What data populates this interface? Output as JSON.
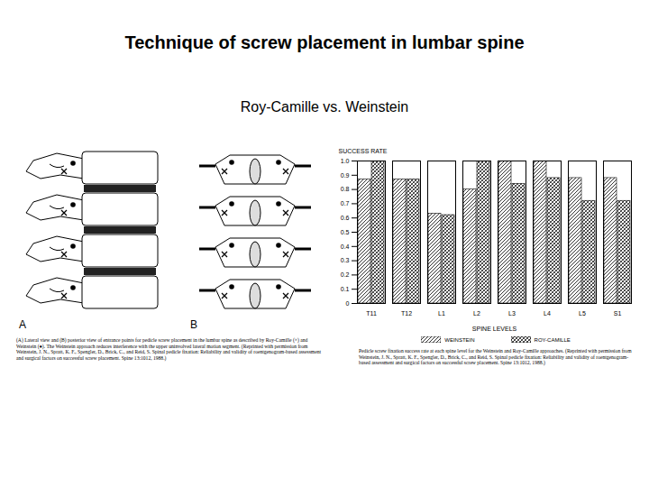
{
  "slide": {
    "title": "Technique of screw placement in lumbar spine",
    "subtitle": "Roy-Camille vs. Weinstein"
  },
  "figure": {
    "panel_labels": [
      "A",
      "B"
    ],
    "caption": "(A) Lateral view and (B) posterior view of entrance points for pedicle screw placement in the lumbar spine as described by Roy-Camille (×) and Weinstein (●). The Weinstein approach reduces interference with the upper uninvolved lateral motion segment. (Reprinted with permission from Weinstein, J. N., Spratt, K. F., Spengler, D., Brick, C., and Reid, S. Spinal pedicle fixation: Reliability and validity of roentgenogram-based assessment and surgical factors on successful screw placement. Spine 13:1012, 1988.)"
  },
  "chart_data": {
    "type": "bar",
    "y_label": "SUCCESS RATE",
    "x_label": "SPINE LEVELS",
    "categories": [
      "T11",
      "T12",
      "L1",
      "L2",
      "L3",
      "L4",
      "L5",
      "S1"
    ],
    "series": [
      {
        "name": "WEINSTEIN",
        "color": "#000000",
        "values": [
          0.87,
          0.87,
          0.63,
          0.8,
          1.0,
          1.0,
          0.88,
          0.88
        ]
      },
      {
        "name": "ROY-CAMILLE",
        "color": "#000000",
        "values": [
          1.0,
          0.87,
          0.62,
          1.0,
          0.84,
          0.88,
          0.72,
          0.72
        ]
      }
    ],
    "ylim": [
      0,
      1
    ],
    "yticks": [
      0,
      0.1,
      0.2,
      0.3,
      0.4,
      0.5,
      0.6,
      0.7,
      0.8,
      0.9,
      {
        "value": 1,
        "label": "1.0"
      }
    ],
    "legend": "bottom",
    "grid": false,
    "caption": "Pedicle screw fixation success rate at each spine level for the Weinstein and Roy-Camille approaches. (Reprinted with permission from Weinstein, J. N., Spratt, K. F., Spengler, D., Brick, C., and Reid, S. Spinal pedicle fixation: Reliability and validity of roentgenogram-based assessment and surgical factors on successful screw placement. Spine 13:1012, 1988.)"
  }
}
